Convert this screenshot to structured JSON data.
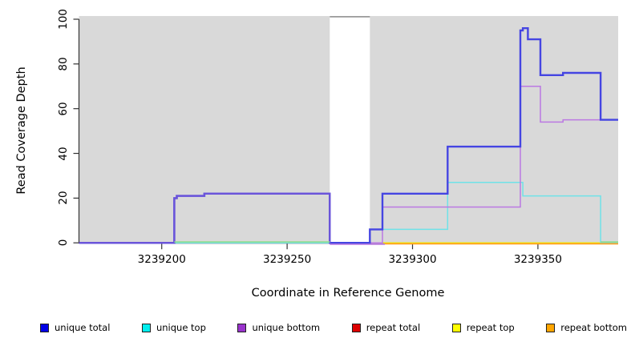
{
  "chart_data": {
    "type": "line",
    "subtype": "step-coverage",
    "title": "",
    "xlabel": "Coordinate in Reference Genome",
    "ylabel": "Read Coverage Depth",
    "xlim": [
      3239167,
      3239382
    ],
    "ylim": [
      0,
      100
    ],
    "xticks": [
      3239200,
      3239250,
      3239300,
      3239350
    ],
    "yticks": [
      0,
      20,
      40,
      60,
      80,
      100
    ],
    "grid": "off",
    "panel_color": "#d9d9d9",
    "gap_band": {
      "x0": 3239267,
      "x1": 3239283,
      "fill": "#ffffff",
      "cap_color": "#999999"
    },
    "axis_color": "#333333",
    "series": [
      {
        "name": "repeat total",
        "legend_color": "#dd0000",
        "line_color": "#dd2222",
        "line_width": 1.3,
        "dy": 0,
        "points": [
          [
            3239167,
            0
          ],
          [
            3239382,
            0
          ]
        ]
      },
      {
        "name": "repeat top",
        "legend_color": "#ffff00",
        "line_color": "#f0f000",
        "line_width": 1.3,
        "dy": 0,
        "points": [
          [
            3239167,
            0
          ],
          [
            3239382,
            0
          ]
        ]
      },
      {
        "name": "unique top",
        "legend_color": "#00eeee",
        "line_color": "#6fe2e8",
        "line_width": 1.5,
        "dy": 0,
        "points": [
          [
            3239167,
            0
          ],
          [
            3239283,
            0
          ],
          [
            3239283,
            6
          ],
          [
            3239314,
            6
          ],
          [
            3239314,
            27
          ],
          [
            3239344,
            27
          ],
          [
            3239344,
            21
          ],
          [
            3239375,
            21
          ],
          [
            3239375,
            0
          ],
          [
            3239382,
            0
          ]
        ]
      },
      {
        "name": "unique bottom",
        "legend_color": "#9933cc",
        "line_color": "#bb79e2",
        "line_width": 1.5,
        "dy": 0,
        "points": [
          [
            3239167,
            0
          ],
          [
            3239205,
            0
          ],
          [
            3239205,
            20
          ],
          [
            3239206,
            20
          ],
          [
            3239206,
            21
          ],
          [
            3239217,
            21
          ],
          [
            3239217,
            22
          ],
          [
            3239267,
            22
          ],
          [
            3239267,
            0
          ],
          [
            3239288,
            0
          ],
          [
            3239288,
            16
          ],
          [
            3239343,
            16
          ],
          [
            3239343,
            70
          ],
          [
            3239351,
            70
          ],
          [
            3239351,
            54
          ],
          [
            3239360,
            54
          ],
          [
            3239360,
            55
          ],
          [
            3239382,
            55
          ]
        ]
      },
      {
        "name": "unique total",
        "legend_color": "#0000e6",
        "line_color": "#4545e2",
        "line_width": 2.4,
        "dy": 0,
        "points": [
          [
            3239167,
            0
          ],
          [
            3239205,
            0
          ],
          [
            3239205,
            20
          ],
          [
            3239206,
            20
          ],
          [
            3239206,
            21
          ],
          [
            3239217,
            21
          ],
          [
            3239217,
            22
          ],
          [
            3239267,
            22
          ],
          [
            3239267,
            0
          ],
          [
            3239283,
            0
          ],
          [
            3239283,
            6
          ],
          [
            3239288,
            6
          ],
          [
            3239288,
            22
          ],
          [
            3239314,
            22
          ],
          [
            3239314,
            43
          ],
          [
            3239343,
            43
          ],
          [
            3239343,
            95
          ],
          [
            3239344,
            95
          ],
          [
            3239344,
            96
          ],
          [
            3239346,
            96
          ],
          [
            3239346,
            91
          ],
          [
            3239351,
            91
          ],
          [
            3239351,
            75
          ],
          [
            3239360,
            75
          ],
          [
            3239360,
            76
          ],
          [
            3239375,
            76
          ],
          [
            3239375,
            55
          ],
          [
            3239382,
            55
          ]
        ]
      },
      {
        "name": "repeat bottom",
        "legend_color": "#ffa500",
        "line_color": "#ff9e1e",
        "line_width": 1.8,
        "dy": 1.2,
        "points": [
          [
            3239289,
            0
          ],
          [
            3239382,
            0
          ]
        ]
      }
    ],
    "overlap_segments": [
      {
        "name": "unique-total-plus-bottom-overlap",
        "line_color": "#6b54da",
        "line_width": 2.4,
        "dy": 0,
        "points": [
          [
            3239167,
            0
          ],
          [
            3239205,
            0
          ],
          [
            3239205,
            20
          ],
          [
            3239206,
            20
          ],
          [
            3239206,
            21
          ],
          [
            3239217,
            21
          ],
          [
            3239217,
            22
          ],
          [
            3239267,
            22
          ],
          [
            3239267,
            0
          ]
        ]
      },
      {
        "name": "unique-bottom-zero-fringe",
        "line_color": "#bb79e2",
        "line_width": 1.4,
        "dy": 1.8,
        "points": [
          [
            3239267,
            0
          ],
          [
            3239289,
            0
          ]
        ]
      },
      {
        "name": "top-strands-zero-overlap-left",
        "line_color": "#8fdc8f",
        "line_width": 1.6,
        "dy": -1.1,
        "points": [
          [
            3239205,
            0
          ],
          [
            3239267,
            0
          ]
        ]
      },
      {
        "name": "top-strands-zero-overlap-right",
        "line_color": "#8fdc8f",
        "line_width": 1.6,
        "dy": -1.1,
        "points": [
          [
            3239375,
            0
          ],
          [
            3239382,
            0
          ]
        ]
      }
    ]
  },
  "legend": {
    "items": [
      {
        "label": "unique total",
        "color": "#0000e6"
      },
      {
        "label": "unique top",
        "color": "#00eeee"
      },
      {
        "label": "unique bottom",
        "color": "#9933cc"
      },
      {
        "label": "repeat total",
        "color": "#dd0000"
      },
      {
        "label": "repeat top",
        "color": "#ffff00"
      },
      {
        "label": "repeat bottom",
        "color": "#ffa500"
      }
    ]
  }
}
